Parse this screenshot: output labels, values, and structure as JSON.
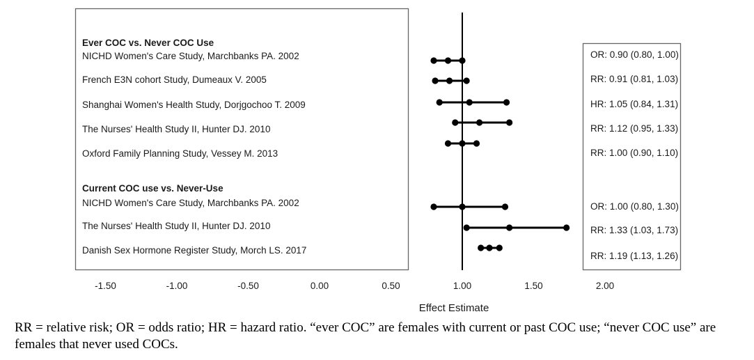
{
  "chart_data": {
    "type": "forest",
    "xlabel": "Effect Estimate",
    "xlim": [
      -1.5,
      2.0
    ],
    "x_ticks": [
      {
        "value": -1.5,
        "label": "-1.50"
      },
      {
        "value": -1.0,
        "label": "-1.00"
      },
      {
        "value": -0.5,
        "label": "-0.50"
      },
      {
        "value": 0.0,
        "label": "0.00"
      },
      {
        "value": 0.5,
        "label": "0.50"
      },
      {
        "value": 1.0,
        "label": "1.00"
      },
      {
        "value": 1.5,
        "label": "1.50"
      },
      {
        "value": 2.0,
        "label": "2.00"
      }
    ],
    "reference_line": 1.0,
    "groups": [
      {
        "title": "Ever COC vs. Never COC Use",
        "studies": [
          {
            "label": "NICHD Women's Care Study, Marchbanks PA. 2002",
            "measure": "OR",
            "estimate": 0.9,
            "lower": 0.8,
            "upper": 1.0,
            "text": "OR: 0.90 (0.80, 1.00)"
          },
          {
            "label": "French E3N cohort Study, Dumeaux V. 2005",
            "measure": "RR",
            "estimate": 0.91,
            "lower": 0.81,
            "upper": 1.03,
            "text": "RR: 0.91 (0.81, 1.03)"
          },
          {
            "label": "Shanghai Women's Health Study, Dorjgochoo T. 2009",
            "measure": "HR",
            "estimate": 1.05,
            "lower": 0.84,
            "upper": 1.31,
            "text": "HR: 1.05 (0.84, 1.31)"
          },
          {
            "label": "The Nurses' Health Study II, Hunter DJ. 2010",
            "measure": "RR",
            "estimate": 1.12,
            "lower": 0.95,
            "upper": 1.33,
            "text": "RR: 1.12 (0.95, 1.33)"
          },
          {
            "label": "Oxford Family Planning Study, Vessey M. 2013",
            "measure": "RR",
            "estimate": 1.0,
            "lower": 0.9,
            "upper": 1.1,
            "text": "RR: 1.00 (0.90, 1.10)"
          }
        ]
      },
      {
        "title": "Current COC use vs. Never-Use",
        "studies": [
          {
            "label": "NICHD Women's Care Study, Marchbanks PA. 2002",
            "measure": "OR",
            "estimate": 1.0,
            "lower": 0.8,
            "upper": 1.3,
            "text": "OR: 1.00 (0.80, 1.30)"
          },
          {
            "label": "The Nurses' Health Study II, Hunter DJ. 2010",
            "measure": "RR",
            "estimate": 1.33,
            "lower": 1.03,
            "upper": 1.73,
            "text": "RR: 1.33 (1.03, 1.73)"
          },
          {
            "label": "Danish Sex Hormone Register Study, Morch LS. 2017",
            "measure": "RR",
            "estimate": 1.19,
            "lower": 1.13,
            "upper": 1.26,
            "text": "RR: 1.19 (1.13, 1.26)"
          }
        ]
      }
    ]
  },
  "caption": "RR = relative risk; OR = odds ratio; HR = hazard ratio. “ever COC” are females with current or past COC use; “never COC use” are females that never used COCs."
}
